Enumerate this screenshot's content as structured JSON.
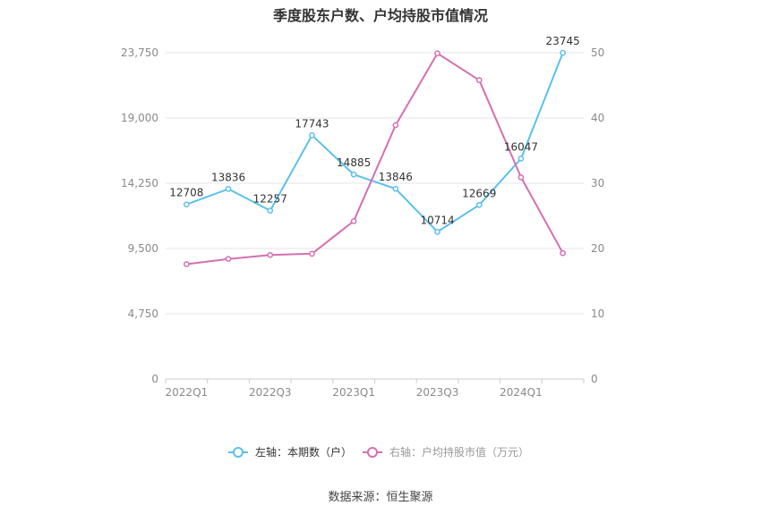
{
  "chart_data": {
    "type": "line",
    "title": "季度股东户数、户均持股市值情况",
    "x": [
      "2022Q1",
      "2022Q2",
      "2022Q3",
      "2022Q4",
      "2023Q1",
      "2023Q2",
      "2023Q3",
      "2023Q4",
      "2024Q1",
      "2024Q2"
    ],
    "x_tick_labels": [
      "2022Q1",
      "2022Q3",
      "2023Q1",
      "2023Q3",
      "2024Q1"
    ],
    "left_axis": {
      "ticks": [
        "0",
        "4,750",
        "9,500",
        "14,250",
        "19,000",
        "23,750"
      ],
      "ylim": [
        0,
        23750
      ]
    },
    "right_axis": {
      "ticks": [
        "0",
        "10",
        "20",
        "30",
        "40",
        "50"
      ],
      "ylim": [
        0,
        50
      ]
    },
    "series": [
      {
        "name": "左轴：本期数（户）",
        "axis": "left",
        "color": "#5bc0eb",
        "values": [
          12708,
          13836,
          12257,
          17743,
          14885,
          13846,
          10714,
          12669,
          16047,
          23745
        ],
        "labels": [
          "12708",
          "13836",
          "12257",
          "17743",
          "14885",
          "13846",
          "10714",
          "12669",
          "16047",
          "23745"
        ]
      },
      {
        "name": "右轴：户均持股市值（万元）",
        "axis": "right",
        "color": "#d46fb1",
        "values": [
          17.6,
          18.4,
          19.0,
          19.2,
          24.2,
          38.9,
          49.9,
          45.8,
          30.9,
          19.3
        ]
      }
    ],
    "grid": true,
    "legend_position": "bottom"
  },
  "source": "数据来源：恒生聚源"
}
